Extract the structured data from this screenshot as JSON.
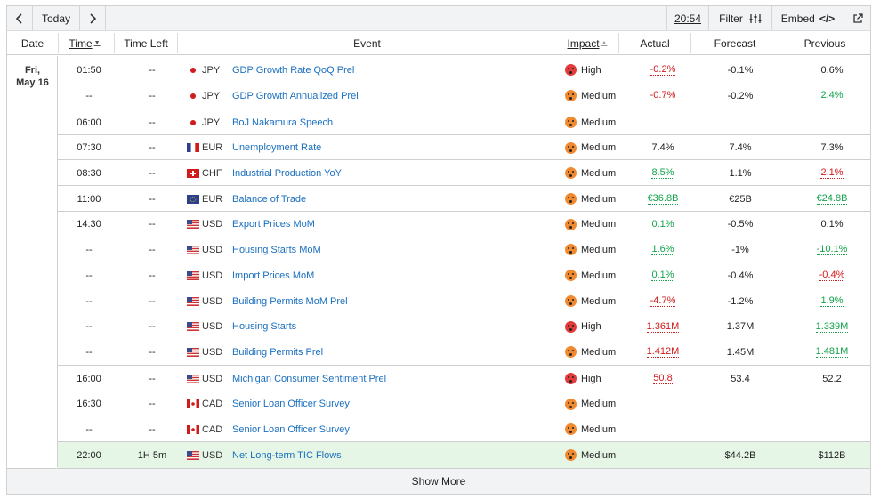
{
  "toolbar": {
    "today_label": "Today",
    "time_label": "20:54",
    "filter_label": "Filter",
    "embed_label": "Embed",
    "embed_code_glyph": "</>"
  },
  "columns": {
    "date": "Date",
    "time": "Time",
    "time_left": "Time Left",
    "event": "Event",
    "impact": "Impact",
    "actual": "Actual",
    "forecast": "Forecast",
    "previous": "Previous"
  },
  "date_group": {
    "day": "Fri,",
    "date": "May 16"
  },
  "rows": [
    {
      "time": "01:50",
      "time_left": "--",
      "flag": "jp",
      "currency": "JPY",
      "event": "GDP Growth Rate QoQ Prel",
      "impact": "High",
      "actual": "-0.2%",
      "actual_color": "red",
      "forecast": "-0.1%",
      "previous": "0.6%",
      "previous_color": "plain"
    },
    {
      "time": "--",
      "time_left": "--",
      "flag": "jp",
      "currency": "JPY",
      "event": "GDP Growth Annualized Prel",
      "impact": "Medium",
      "actual": "-0.7%",
      "actual_color": "red",
      "forecast": "-0.2%",
      "previous": "2.4%",
      "previous_color": "green"
    },
    {
      "time": "06:00",
      "time_left": "--",
      "flag": "jp",
      "currency": "JPY",
      "event": "BoJ Nakamura Speech",
      "impact": "Medium",
      "actual": "",
      "actual_color": "plain",
      "forecast": "",
      "previous": "",
      "previous_color": "plain"
    },
    {
      "time": "07:30",
      "time_left": "--",
      "flag": "eu-fr",
      "currency": "EUR",
      "event": "Unemployment Rate",
      "impact": "Medium",
      "actual": "7.4%",
      "actual_color": "plain",
      "forecast": "7.4%",
      "previous": "7.3%",
      "previous_color": "plain"
    },
    {
      "time": "08:30",
      "time_left": "--",
      "flag": "ch",
      "currency": "CHF",
      "event": "Industrial Production YoY",
      "impact": "Medium",
      "actual": "8.5%",
      "actual_color": "green",
      "forecast": "1.1%",
      "previous": "2.1%",
      "previous_color": "red"
    },
    {
      "time": "11:00",
      "time_left": "--",
      "flag": "eu",
      "currency": "EUR",
      "event": "Balance of Trade",
      "impact": "Medium",
      "actual": "€36.8B",
      "actual_color": "green",
      "forecast": "€25B",
      "previous": "€24.8B",
      "previous_color": "green"
    },
    {
      "time": "14:30",
      "time_left": "--",
      "flag": "us",
      "currency": "USD",
      "event": "Export Prices MoM",
      "impact": "Medium",
      "actual": "0.1%",
      "actual_color": "green",
      "forecast": "-0.5%",
      "previous": "0.1%",
      "previous_color": "plain"
    },
    {
      "time": "--",
      "time_left": "--",
      "flag": "us",
      "currency": "USD",
      "event": "Housing Starts MoM",
      "impact": "Medium",
      "actual": "1.6%",
      "actual_color": "green",
      "forecast": "-1%",
      "previous": "-10.1%",
      "previous_color": "green"
    },
    {
      "time": "--",
      "time_left": "--",
      "flag": "us",
      "currency": "USD",
      "event": "Import Prices MoM",
      "impact": "Medium",
      "actual": "0.1%",
      "actual_color": "green",
      "forecast": "-0.4%",
      "previous": "-0.4%",
      "previous_color": "red"
    },
    {
      "time": "--",
      "time_left": "--",
      "flag": "us",
      "currency": "USD",
      "event": "Building Permits MoM Prel",
      "impact": "Medium",
      "actual": "-4.7%",
      "actual_color": "red",
      "forecast": "-1.2%",
      "previous": "1.9%",
      "previous_color": "green"
    },
    {
      "time": "--",
      "time_left": "--",
      "flag": "us",
      "currency": "USD",
      "event": "Housing Starts",
      "impact": "High",
      "actual": "1.361M",
      "actual_color": "red",
      "forecast": "1.37M",
      "previous": "1.339M",
      "previous_color": "green"
    },
    {
      "time": "--",
      "time_left": "--",
      "flag": "us",
      "currency": "USD",
      "event": "Building Permits Prel",
      "impact": "Medium",
      "actual": "1.412M",
      "actual_color": "red",
      "forecast": "1.45M",
      "previous": "1.481M",
      "previous_color": "green"
    },
    {
      "time": "16:00",
      "time_left": "--",
      "flag": "us",
      "currency": "USD",
      "event": "Michigan Consumer Sentiment Prel",
      "impact": "High",
      "actual": "50.8",
      "actual_color": "red",
      "forecast": "53.4",
      "previous": "52.2",
      "previous_color": "plain"
    },
    {
      "time": "16:30",
      "time_left": "--",
      "flag": "ca",
      "currency": "CAD",
      "event": "Senior Loan Officer Survey",
      "impact": "Medium",
      "actual": "",
      "actual_color": "plain",
      "forecast": "",
      "previous": "",
      "previous_color": "plain"
    },
    {
      "time": "--",
      "time_left": "--",
      "flag": "ca",
      "currency": "CAD",
      "event": "Senior Loan Officer Survey",
      "impact": "Medium",
      "actual": "",
      "actual_color": "plain",
      "forecast": "",
      "previous": "",
      "previous_color": "plain"
    },
    {
      "time": "22:00",
      "time_left": "1H 5m",
      "flag": "us",
      "currency": "USD",
      "event": "Net Long-term TIC Flows",
      "impact": "Medium",
      "actual": "",
      "actual_color": "plain",
      "forecast": "$44.2B",
      "previous": "$112B",
      "previous_color": "plain",
      "highlight": true
    }
  ],
  "show_more_label": "Show More",
  "colors": {
    "link": "#1a6fbf",
    "negative": "#d11a1a",
    "positive": "#12a34a",
    "high_impact": "#e23b3b",
    "medium_impact": "#f08a30",
    "highlight_row": "#e6f6e6"
  }
}
